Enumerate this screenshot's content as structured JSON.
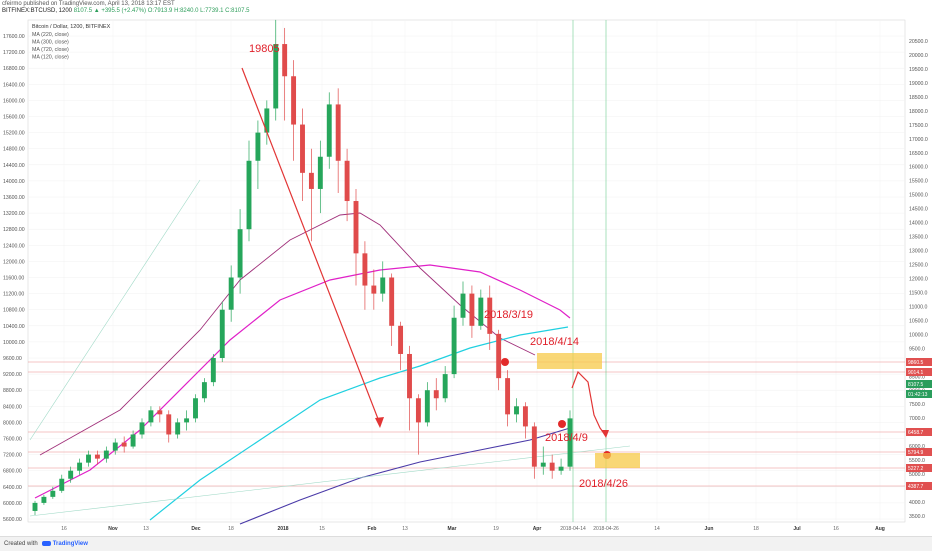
{
  "header": {
    "publisher": "cfeirmo published on TradingView.com, April 13, 2018 13:17 EST",
    "symbol": "BITFINEX:BTCUSD, 1200",
    "price_change": "8107.5 ▲ +395.5 (+2.47%)",
    "o": "O:7913.9",
    "h": "H:8240.0",
    "l": "L:7739.1",
    "c": "C:8107.5"
  },
  "footer": {
    "created_with": "Created with",
    "brand": "TradingView"
  },
  "chart_data": {
    "type": "line",
    "title": "Bitcoin / Dollar, 1200, BITFINEX",
    "legend_items": [
      "MA (220, close)",
      "MA (300, close)",
      "MA (720, close)",
      "MA (120, close)"
    ],
    "left_axis_ticks": [
      5600,
      6000,
      6400,
      6800,
      7200,
      7600,
      8000,
      8400,
      8800,
      9200,
      9600,
      10000,
      10400,
      10800,
      11200,
      11600,
      12000,
      12400,
      12800,
      13200,
      13600,
      14000,
      14400,
      14800,
      15200,
      15600,
      16000,
      16400,
      16800,
      17200,
      17600
    ],
    "right_axis_ticks": [
      3500,
      4000,
      4500,
      5000,
      5500,
      6000,
      6500,
      7000,
      7500,
      8000,
      8500,
      9000,
      9500,
      10000,
      10500,
      11000,
      11500,
      12000,
      12500,
      13000,
      13500,
      14000,
      14500,
      15000,
      15500,
      16000,
      16500,
      17000,
      17500,
      18000,
      18500,
      19000,
      19500,
      20000,
      20500
    ],
    "right_axis_tags": [
      "9860.5",
      "9014.1",
      "8107.5",
      "01:42:13",
      "6458.7",
      "5794.9",
      "5227.2",
      "4387.7"
    ],
    "x_tick_labels": [
      "16",
      "Nov",
      "13",
      "Dec",
      "18",
      "2018",
      "15",
      "Feb",
      "13",
      "Mar",
      "19",
      "Apr",
      "2018-04-14",
      "2018-04-26",
      "14",
      "Jun",
      "18",
      "Jul",
      "16",
      "Aug"
    ],
    "annotations": [
      "19805",
      "2018/3/19",
      "2018/4/14",
      "2018/4/9",
      "2018/4/26"
    ],
    "ma_colors": {
      "ma120": "#e020c8",
      "ma220": "#a0307a",
      "ma720": "#4a3aa8",
      "ma300": "#20d0e0"
    },
    "candles": [
      [
        5800,
        6000,
        5700,
        6050
      ],
      [
        6000,
        6150,
        5950,
        6200
      ],
      [
        6150,
        6300,
        6100,
        6400
      ],
      [
        6300,
        6600,
        6250,
        6700
      ],
      [
        6600,
        6800,
        6500,
        6900
      ],
      [
        6800,
        7000,
        6700,
        7100
      ],
      [
        7000,
        7200,
        6900,
        7300
      ],
      [
        7200,
        7100,
        6950,
        7300
      ],
      [
        7100,
        7300,
        7000,
        7400
      ],
      [
        7300,
        7500,
        7200,
        7600
      ],
      [
        7500,
        7400,
        7250,
        7650
      ],
      [
        7400,
        7700,
        7350,
        7800
      ],
      [
        7700,
        8000,
        7600,
        8100
      ],
      [
        8000,
        8300,
        7900,
        8400
      ],
      [
        8300,
        8200,
        8000,
        8400
      ],
      [
        8200,
        7700,
        7500,
        8300
      ],
      [
        7700,
        8000,
        7600,
        8100
      ],
      [
        8000,
        8100,
        7800,
        8300
      ],
      [
        8100,
        8600,
        8000,
        8700
      ],
      [
        8600,
        9000,
        8500,
        9100
      ],
      [
        9000,
        9600,
        8900,
        9700
      ],
      [
        9600,
        10800,
        9500,
        11000
      ],
      [
        10800,
        11600,
        10500,
        11900
      ],
      [
        11600,
        12800,
        11200,
        13300
      ],
      [
        12800,
        14500,
        12500,
        15000
      ],
      [
        14500,
        15200,
        13800,
        15500
      ],
      [
        15200,
        15800,
        14900,
        16000
      ],
      [
        15800,
        17400,
        15500,
        18000
      ],
      [
        17400,
        16600,
        15500,
        17800
      ],
      [
        16600,
        15400,
        14500,
        17000
      ],
      [
        15400,
        14200,
        13500,
        15800
      ],
      [
        14200,
        13800,
        12500,
        14800
      ],
      [
        13800,
        14600,
        13200,
        15000
      ],
      [
        14600,
        15900,
        14300,
        16200
      ],
      [
        15900,
        14500,
        13700,
        16300
      ],
      [
        14500,
        13500,
        13000,
        14800
      ],
      [
        13500,
        12200,
        11400,
        13800
      ],
      [
        12200,
        11400,
        10800,
        12500
      ],
      [
        11400,
        11200,
        10800,
        11800
      ],
      [
        11200,
        11600,
        11000,
        12000
      ],
      [
        11600,
        10400,
        9900,
        11700
      ],
      [
        10400,
        9700,
        9300,
        10500
      ],
      [
        9700,
        8600,
        7800,
        9900
      ],
      [
        8600,
        8000,
        7200,
        8700
      ],
      [
        8000,
        8800,
        7900,
        9000
      ],
      [
        8800,
        8600,
        8300,
        9100
      ],
      [
        8600,
        9200,
        8500,
        9400
      ],
      [
        9200,
        10600,
        9100,
        10900
      ],
      [
        10600,
        11200,
        10400,
        11500
      ],
      [
        11200,
        10400,
        10100,
        11400
      ],
      [
        10400,
        11100,
        10300,
        11300
      ],
      [
        11100,
        10200,
        9800,
        11400
      ],
      [
        10200,
        9100,
        8800,
        10300
      ],
      [
        9100,
        8200,
        7900,
        9300
      ],
      [
        8200,
        8400,
        8000,
        8600
      ],
      [
        8400,
        7900,
        7600,
        8500
      ],
      [
        7900,
        6900,
        6600,
        8000
      ],
      [
        6900,
        7000,
        6700,
        7400
      ],
      [
        7000,
        6800,
        6600,
        7200
      ],
      [
        6800,
        6900,
        6700,
        7100
      ],
      [
        6900,
        8100,
        6800,
        8300
      ]
    ]
  }
}
